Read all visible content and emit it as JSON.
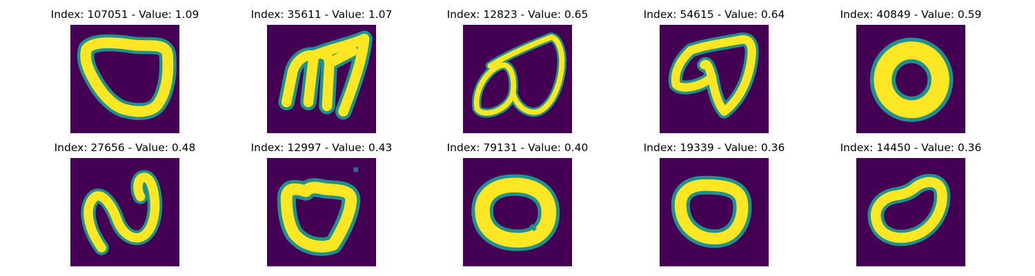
{
  "colormap": {
    "name": "viridis",
    "background": "#440154",
    "stroke": "#fde725",
    "edge": "#21918c"
  },
  "tiles": [
    {
      "title": "Index: 107051 - Value: 1.09",
      "image": "handwritten-loop-blob"
    },
    {
      "title": "Index: 35611 - Value: 1.07",
      "image": "handwritten-m-shape"
    },
    {
      "title": "Index: 12823 - Value: 0.65",
      "image": "handwritten-double-loop"
    },
    {
      "title": "Index: 54615 - Value: 0.64",
      "image": "handwritten-heart-shape"
    },
    {
      "title": "Index: 40849 - Value: 0.59",
      "image": "handwritten-zero"
    },
    {
      "title": "Index: 27656 - Value: 0.48",
      "image": "handwritten-n-shape"
    },
    {
      "title": "Index: 12997 - Value: 0.43",
      "image": "handwritten-zero"
    },
    {
      "title": "Index: 79131 - Value: 0.40",
      "image": "handwritten-zero"
    },
    {
      "title": "Index: 19339 - Value: 0.36",
      "image": "handwritten-zero"
    },
    {
      "title": "Index: 14450 - Value: 0.36",
      "image": "handwritten-zero"
    }
  ]
}
